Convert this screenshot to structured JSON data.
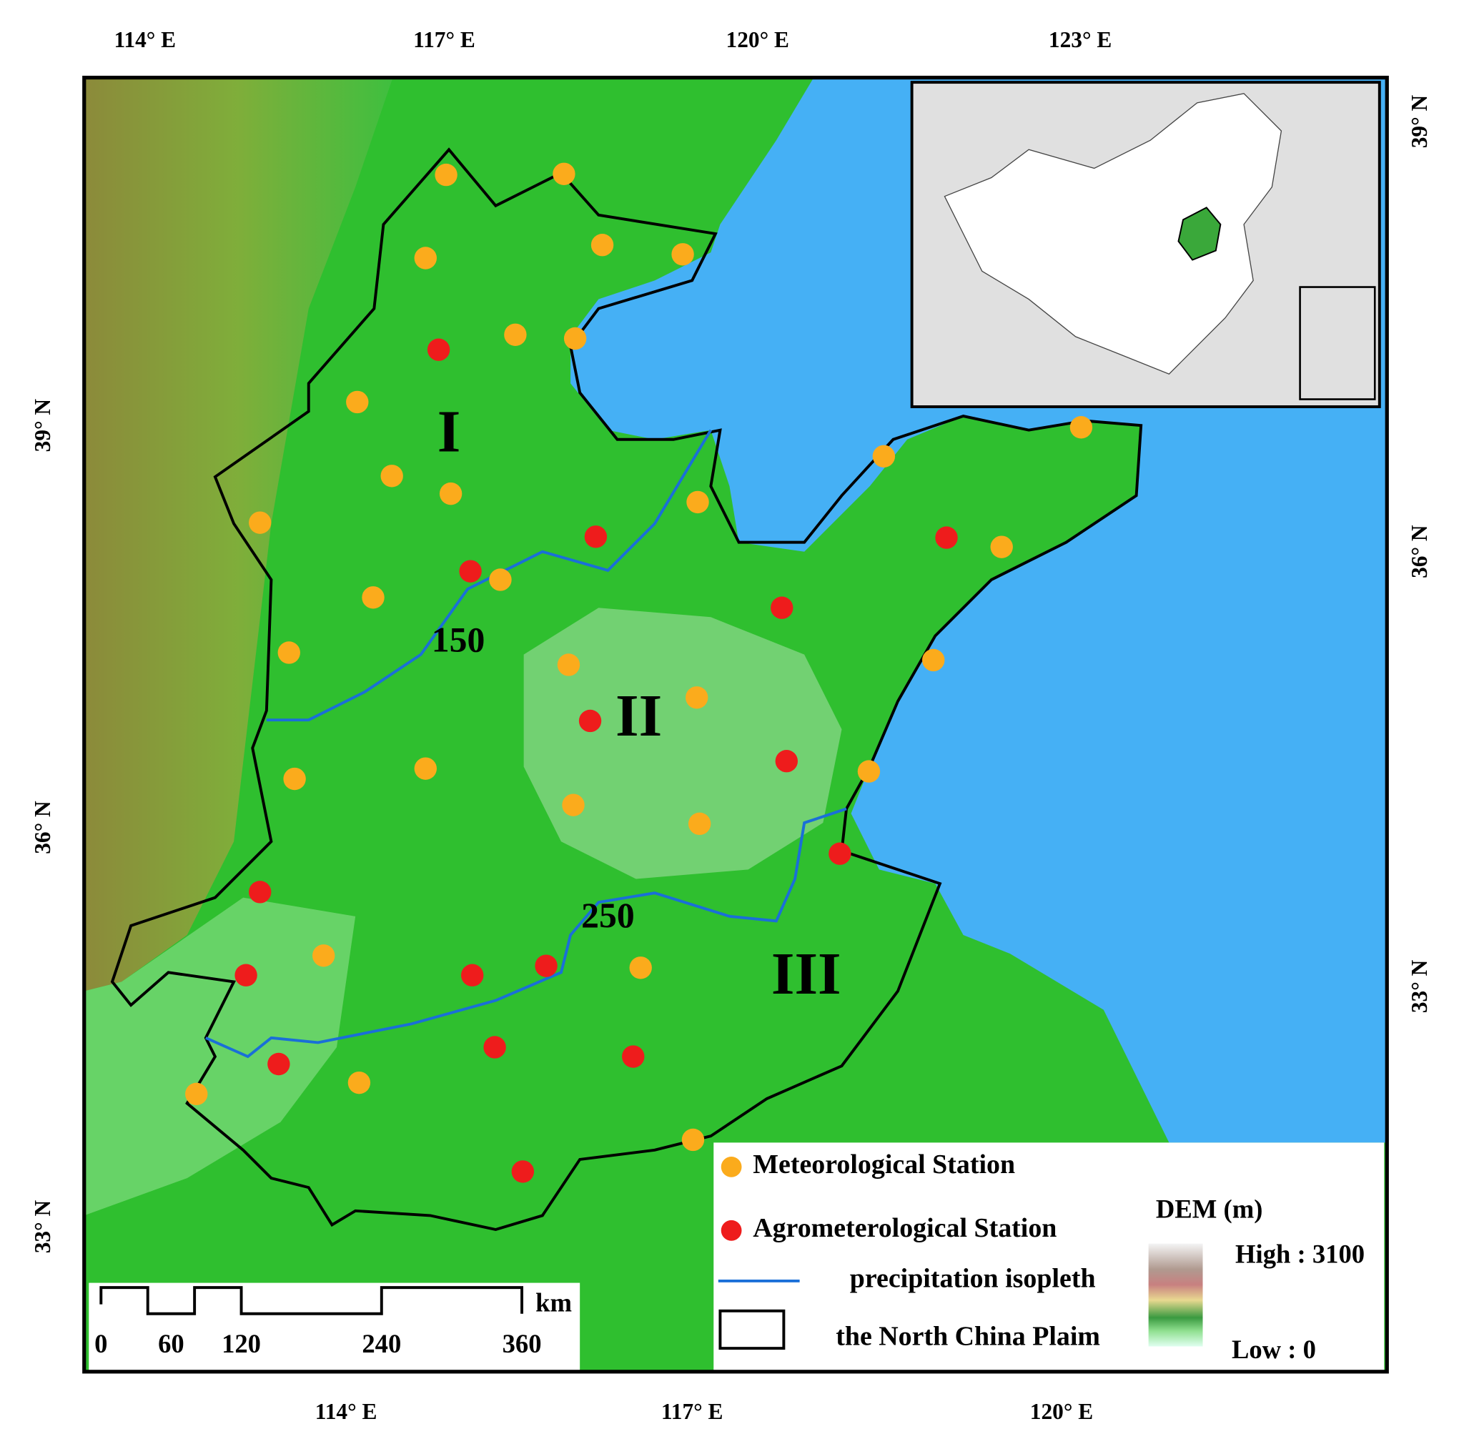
{
  "axes": {
    "top": [
      "114° E",
      "117° E",
      "120° E",
      "123° E"
    ],
    "bottom": [
      "114° E",
      "117° E",
      "120° E"
    ],
    "left": [
      "39° N",
      "36° N",
      "33° N"
    ],
    "right": [
      "39° N",
      "36° N",
      "33° N"
    ]
  },
  "regions": [
    "I",
    "II",
    "III"
  ],
  "isopleths": [
    150,
    250
  ],
  "legend": {
    "items": [
      "Meteorological Station",
      "Agrometerological Station",
      "precipitation isopleth",
      "the North China Plaim"
    ],
    "dem_title": "DEM (m)",
    "high": "High : 3100",
    "low": "Low : 0"
  },
  "scale_bar": {
    "ticks": [
      0,
      60,
      120,
      240,
      360
    ],
    "unit": "km"
  }
}
